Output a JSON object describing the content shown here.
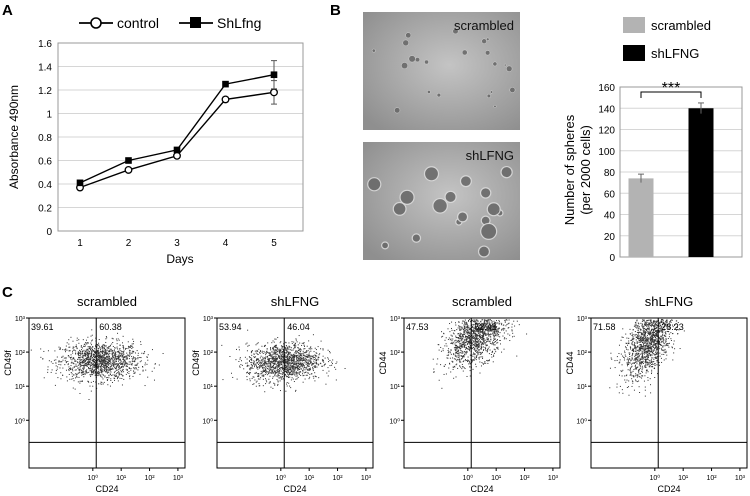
{
  "panels": {
    "A": {
      "letter": "A"
    },
    "B": {
      "letter": "B"
    },
    "C": {
      "letter": "C"
    }
  },
  "chart_data": [
    {
      "type": "line",
      "panel": "A",
      "x": [
        1,
        2,
        3,
        4,
        5
      ],
      "xticks": [
        "1",
        "2",
        "3",
        "4",
        "5"
      ],
      "xlabel": "Days",
      "ylabel": "Absorbance 490nm",
      "ylim": [
        0,
        1.6
      ],
      "yticks": [
        "0",
        "0.2",
        "0.4",
        "0.6",
        "0.8",
        "1",
        "1.2",
        "1.4",
        "1.6"
      ],
      "grid": true,
      "legend_position": "top",
      "series": [
        {
          "name": "control",
          "marker": "open-circle",
          "values": [
            0.37,
            0.52,
            0.64,
            1.12,
            1.18
          ],
          "errors": [
            0.01,
            0.01,
            0.01,
            0.02,
            0.1
          ]
        },
        {
          "name": "ShLfng",
          "marker": "filled-square",
          "values": [
            0.41,
            0.6,
            0.69,
            1.25,
            1.33
          ],
          "errors": [
            0.01,
            0.01,
            0.02,
            0.02,
            0.12
          ]
        }
      ]
    },
    {
      "type": "bar",
      "panel": "B",
      "categories": [
        "scrambled",
        "shLFNG"
      ],
      "values": [
        74,
        140
      ],
      "errors": [
        4,
        5
      ],
      "colors": [
        "#b3b3b3",
        "#000000"
      ],
      "ylabel": "Number of spheres\n(per 2000 cells)",
      "ylim": [
        0,
        160
      ],
      "yticks": [
        "0",
        "20",
        "40",
        "60",
        "80",
        "100",
        "120",
        "140",
        "160"
      ],
      "grid": true,
      "legend_position": "top",
      "significance": "***"
    },
    {
      "type": "scatter",
      "panel": "C",
      "plots": [
        {
          "title": "scrambled",
          "xlabel": "CD24",
          "ylabel": "CD49f",
          "q_left": "39.61",
          "q_right": "60.38",
          "cx": 0.25,
          "cy": 1.75,
          "sx": 0.7,
          "sy": 0.28,
          "corr": 0.0
        },
        {
          "title": "shLFNG",
          "xlabel": "CD24",
          "ylabel": "CD49f",
          "q_left": "53.94",
          "q_right": "46.04",
          "cx": 0.1,
          "cy": 1.72,
          "sx": 0.65,
          "sy": 0.28,
          "corr": 0.1
        },
        {
          "title": "scrambled",
          "xlabel": "CD24",
          "ylabel": "CD44",
          "q_left": "47.53",
          "q_right": "52.45",
          "cx": 0.3,
          "cy": 2.5,
          "sx": 0.55,
          "sy": 0.45,
          "corr": 0.5
        },
        {
          "title": "shLFNG",
          "xlabel": "CD24",
          "ylabel": "CD44",
          "q_left": "71.58",
          "q_right": "28.23",
          "cx": -0.2,
          "cy": 2.35,
          "sx": 0.45,
          "sy": 0.55,
          "corr": 0.55
        }
      ],
      "x_ticks": [
        "10⁰",
        "10¹",
        "10²",
        "10³"
      ],
      "y_ticks": [
        "10⁰",
        "10¹",
        "10²",
        "10³"
      ],
      "axis_scale": "log"
    }
  ],
  "micrographs": [
    {
      "label": "scrambled"
    },
    {
      "label": "shLFNG"
    }
  ]
}
